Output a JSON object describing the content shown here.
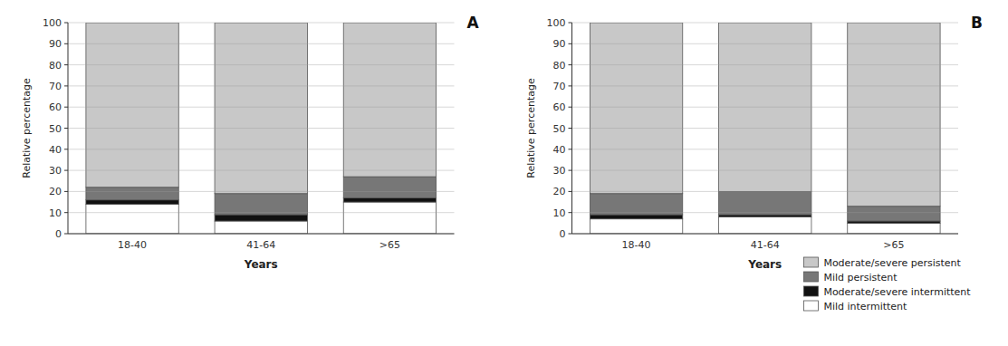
{
  "chart_data": [
    {
      "type": "bar",
      "title": "A",
      "stacked": true,
      "grid": true,
      "x_label": "Years",
      "y_label": "Relative percentage",
      "categories": [
        "18-40",
        "41-64",
        ">65"
      ],
      "series": [
        {
          "name": "Mild intermittent",
          "color": "#ffffff",
          "values": [
            14,
            6,
            15
          ]
        },
        {
          "name": "Moderate/severe intermittent",
          "color": "#111111",
          "values": [
            2,
            3,
            2
          ]
        },
        {
          "name": "Mild persistent",
          "color": "#777777",
          "values": [
            6,
            10,
            10
          ]
        },
        {
          "name": "Moderate/severe persistent",
          "color": "#c8c8c8",
          "values": [
            78,
            81,
            73
          ]
        }
      ],
      "ylim": [
        0,
        100
      ],
      "yticks": [
        0,
        10,
        20,
        30,
        40,
        50,
        60,
        70,
        80,
        90,
        100
      ]
    },
    {
      "type": "bar",
      "title": "B",
      "stacked": true,
      "grid": true,
      "legend": "lower right",
      "x_label": "Years",
      "y_label": "Relative percentage",
      "categories": [
        "18-40",
        "41-64",
        ">65"
      ],
      "series": [
        {
          "name": "Mild intermittent",
          "color": "#ffffff",
          "values": [
            7,
            8,
            5
          ]
        },
        {
          "name": "Moderate/severe intermittent",
          "color": "#111111",
          "values": [
            2,
            1,
            1
          ]
        },
        {
          "name": "Mild persistent",
          "color": "#777777",
          "values": [
            10,
            11,
            7
          ]
        },
        {
          "name": "Moderate/severe persistent",
          "color": "#c8c8c8",
          "values": [
            81,
            80,
            87
          ]
        }
      ],
      "ylim": [
        0,
        100
      ],
      "yticks": [
        0,
        10,
        20,
        30,
        40,
        50,
        60,
        70,
        80,
        90,
        100
      ]
    }
  ]
}
